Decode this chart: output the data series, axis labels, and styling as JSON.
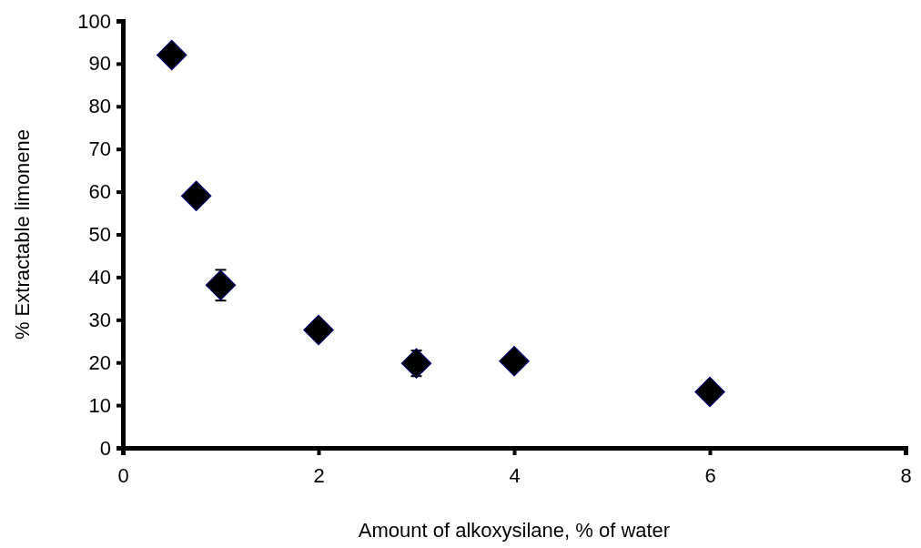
{
  "chart_data": {
    "type": "scatter",
    "xlabel": "Amount of alkoxysilane, % of water",
    "ylabel": "% Extractable limonene",
    "x": [
      0.5,
      0.75,
      1,
      2,
      3,
      4,
      6
    ],
    "series": [
      {
        "color": "#000000",
        "values": [
          92.0,
          59.0,
          38.1,
          27.6,
          19.8,
          20.3,
          13.1
        ],
        "errors": [
          null,
          null,
          3.6,
          null,
          3,
          null,
          null
        ]
      }
    ],
    "marker": "diamond",
    "xlim": [
      0,
      8
    ],
    "xticks": [
      0,
      2,
      4,
      6,
      8
    ],
    "ylim": [
      0,
      100
    ],
    "yticks": [
      0,
      10,
      20,
      30,
      40,
      50,
      60,
      70,
      80,
      90,
      100
    ],
    "grid": false
  }
}
